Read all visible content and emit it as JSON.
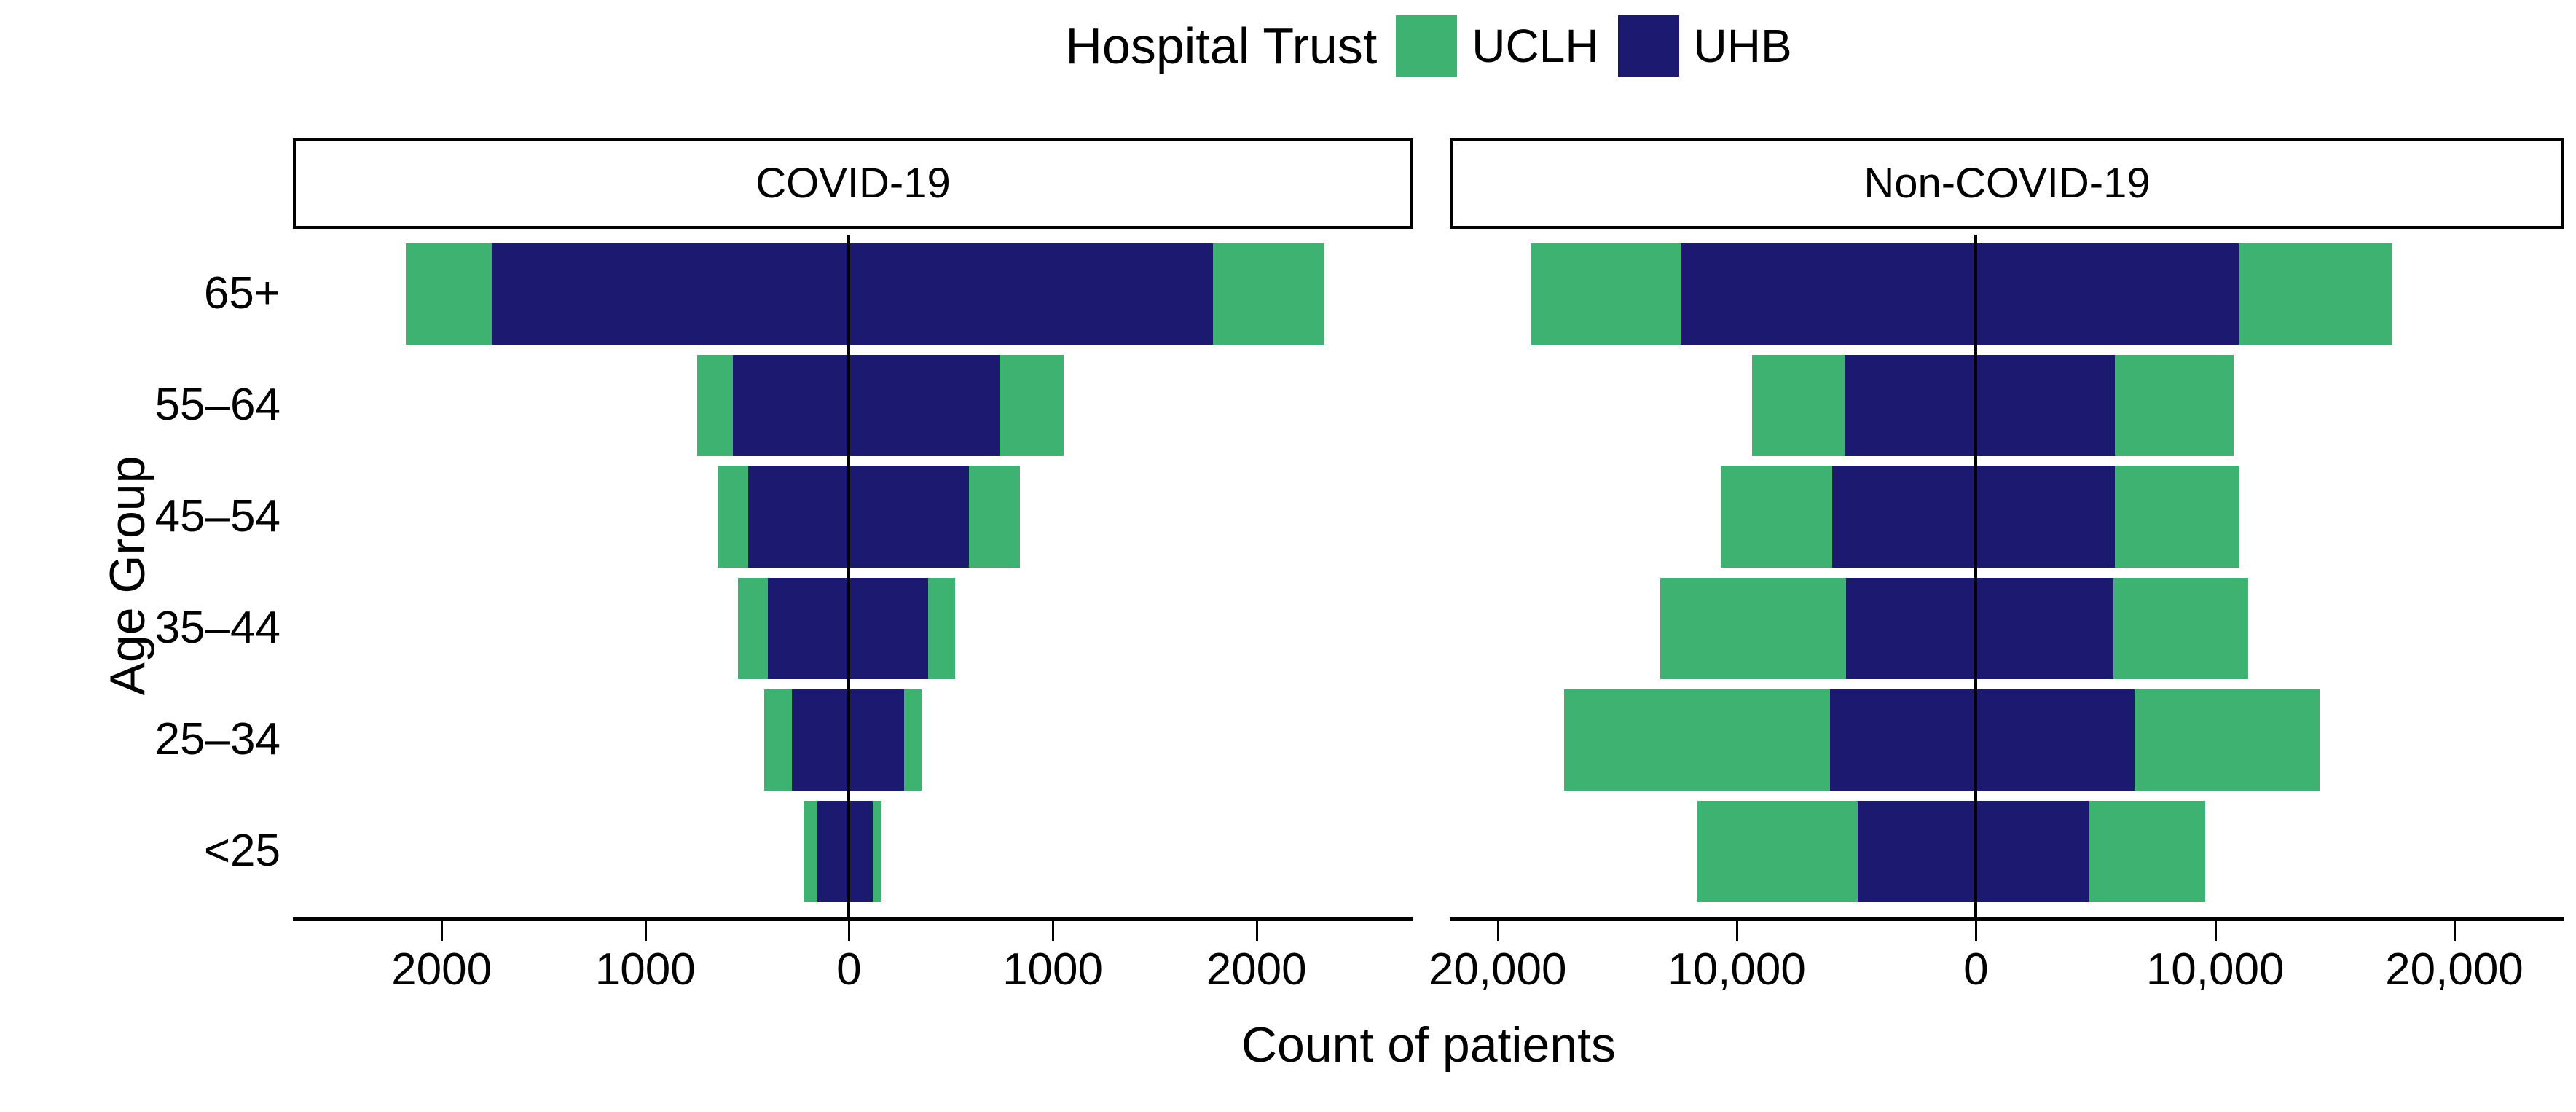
{
  "legend": {
    "title": "Hospital Trust",
    "items": [
      {
        "label": "UCLH",
        "color": "#3DB271"
      },
      {
        "label": "UHB",
        "color": "#1C1970"
      }
    ]
  },
  "axes": {
    "x_title": "Count of patients",
    "y_title": "Age Group"
  },
  "colors": {
    "uclh": "#3DB271",
    "uhb": "#1C1970",
    "axis": "#000000",
    "background": "#FFFFFF"
  },
  "chart_data": {
    "type": "bar",
    "subtype": "diverging-stacked-pyramid",
    "legend_title": "Hospital Trust",
    "series_names": [
      "UCLH",
      "UHB"
    ],
    "xlabel": "Count of patients",
    "ylabel": "Age Group",
    "age_groups": [
      "65+",
      "55–64",
      "45–54",
      "35–44",
      "25–34",
      "<25"
    ],
    "grid": false,
    "legend_position": "top-center",
    "facets": [
      {
        "label": "COVID-19",
        "xlim": [
          -2730,
          2770
        ],
        "tick_values": [
          -2000,
          -1000,
          0,
          1000,
          2000
        ],
        "tick_labels": [
          "2000",
          "1000",
          "0",
          "1000",
          "2000"
        ],
        "rows": [
          {
            "age": "65+",
            "uclh_left": 425,
            "uhb_left": 1750,
            "uhb_right": 1785,
            "uclh_right": 550
          },
          {
            "age": "55–64",
            "uclh_left": 175,
            "uhb_left": 570,
            "uhb_right": 740,
            "uclh_right": 315
          },
          {
            "age": "45–54",
            "uclh_left": 150,
            "uhb_left": 495,
            "uhb_right": 590,
            "uclh_right": 250
          },
          {
            "age": "35–44",
            "uclh_left": 145,
            "uhb_left": 400,
            "uhb_right": 390,
            "uclh_right": 130
          },
          {
            "age": "25–34",
            "uclh_left": 135,
            "uhb_left": 280,
            "uhb_right": 272,
            "uclh_right": 85
          },
          {
            "age": "<25",
            "uclh_left": 65,
            "uhb_left": 155,
            "uhb_right": 115,
            "uclh_right": 45
          }
        ]
      },
      {
        "label": "Non-COVID-19",
        "xlim": [
          -22000,
          24600
        ],
        "tick_values": [
          -20000,
          -10000,
          0,
          10000,
          20000
        ],
        "tick_labels": [
          "20,000",
          "10,000",
          "0",
          "10,000",
          "20,000"
        ],
        "rows": [
          {
            "age": "65+",
            "uclh_left": 6250,
            "uhb_left": 12350,
            "uhb_right": 11000,
            "uclh_right": 6400
          },
          {
            "age": "55–64",
            "uclh_left": 3870,
            "uhb_left": 5490,
            "uhb_right": 5820,
            "uclh_right": 4940
          },
          {
            "age": "45–54",
            "uclh_left": 4660,
            "uhb_left": 6000,
            "uhb_right": 5820,
            "uclh_right": 5210
          },
          {
            "age": "35–44",
            "uclh_left": 7770,
            "uhb_left": 5420,
            "uhb_right": 5760,
            "uclh_right": 5610
          },
          {
            "age": "25–34",
            "uclh_left": 11120,
            "uhb_left": 6090,
            "uhb_right": 6640,
            "uclh_right": 7740
          },
          {
            "age": "<25",
            "uclh_left": 6700,
            "uhb_left": 4940,
            "uhb_right": 4720,
            "uclh_right": 4870
          }
        ]
      }
    ]
  }
}
